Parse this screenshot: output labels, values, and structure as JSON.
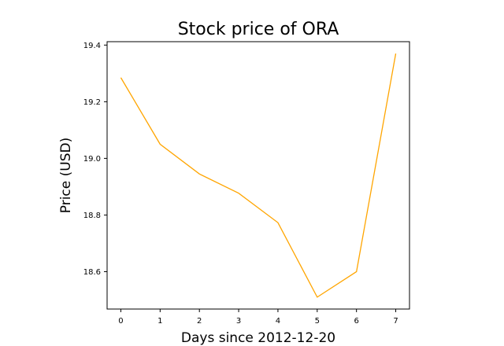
{
  "chart_data": {
    "type": "line",
    "title": "Stock price of ORA",
    "xlabel": "Days since 2012-12-20",
    "ylabel": "Price (USD)",
    "x": [
      0,
      1,
      2,
      3,
      4,
      5,
      6,
      7
    ],
    "series": [
      {
        "values": [
          19.285,
          19.05,
          18.945,
          18.877,
          18.773,
          18.51,
          18.6,
          19.37
        ]
      }
    ],
    "xticks": [
      "0",
      "1",
      "2",
      "3",
      "4",
      "5",
      "6",
      "7"
    ],
    "yticks": [
      "18.6",
      "18.8",
      "19.0",
      "19.2",
      "19.4"
    ],
    "xlim": [
      -0.35,
      7.35
    ],
    "ylim": [
      18.468,
      19.412
    ],
    "grid": false,
    "colors": {
      "line": "#ffa500",
      "axes": "#000000",
      "background": "#ffffff"
    }
  }
}
